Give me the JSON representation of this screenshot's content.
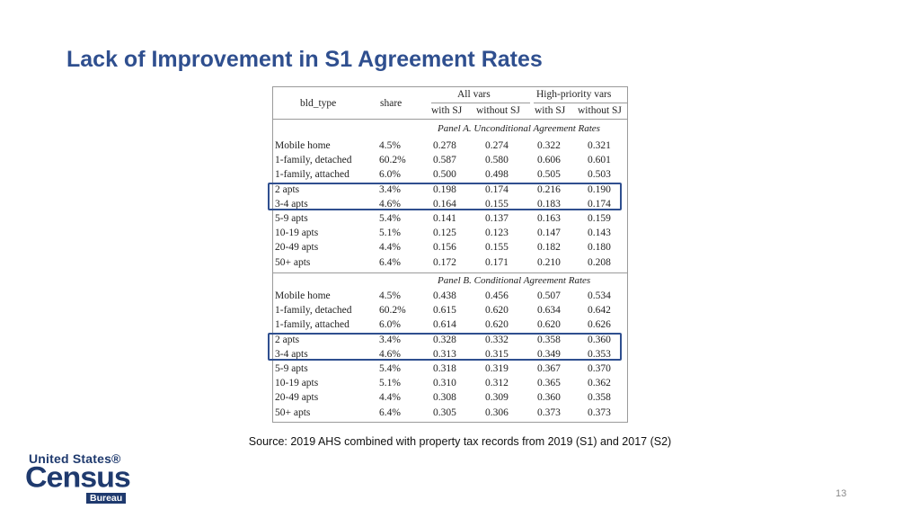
{
  "slide": {
    "title": "Lack of Improvement in S1 Agreement Rates",
    "source": "Source: 2019 AHS combined with property tax records from 2019 (S1) and 2017 (S2)",
    "page_number": "13",
    "logo": {
      "line1": "United States®",
      "line2": "Census",
      "line3": "Bureau"
    }
  },
  "table": {
    "col_bld_type": "bld_type",
    "col_share": "share",
    "group_all": "All vars",
    "group_high": "High-priority vars",
    "sub_with1": "with SJ",
    "sub_without1": "without SJ",
    "sub_with2": "with SJ",
    "sub_without2": "without SJ",
    "panelA_title": "Panel A. Unconditional Agreement Rates",
    "panelB_title": "Panel B. Conditional Agreement Rates",
    "panelA": [
      [
        "Mobile home",
        "4.5%",
        "0.278",
        "0.274",
        "0.322",
        "0.321"
      ],
      [
        "1-family, detached",
        "60.2%",
        "0.587",
        "0.580",
        "0.606",
        "0.601"
      ],
      [
        "1-family, attached",
        "6.0%",
        "0.500",
        "0.498",
        "0.505",
        "0.503"
      ],
      [
        "2 apts",
        "3.4%",
        "0.198",
        "0.174",
        "0.216",
        "0.190"
      ],
      [
        "3-4 apts",
        "4.6%",
        "0.164",
        "0.155",
        "0.183",
        "0.174"
      ],
      [
        "5-9 apts",
        "5.4%",
        "0.141",
        "0.137",
        "0.163",
        "0.159"
      ],
      [
        "10-19 apts",
        "5.1%",
        "0.125",
        "0.123",
        "0.147",
        "0.143"
      ],
      [
        "20-49 apts",
        "4.4%",
        "0.156",
        "0.155",
        "0.182",
        "0.180"
      ],
      [
        "50+ apts",
        "6.4%",
        "0.172",
        "0.171",
        "0.210",
        "0.208"
      ]
    ],
    "panelB": [
      [
        "Mobile home",
        "4.5%",
        "0.438",
        "0.456",
        "0.507",
        "0.534"
      ],
      [
        "1-family, detached",
        "60.2%",
        "0.615",
        "0.620",
        "0.634",
        "0.642"
      ],
      [
        "1-family, attached",
        "6.0%",
        "0.614",
        "0.620",
        "0.620",
        "0.626"
      ],
      [
        "2 apts",
        "3.4%",
        "0.328",
        "0.332",
        "0.358",
        "0.360"
      ],
      [
        "3-4 apts",
        "4.6%",
        "0.313",
        "0.315",
        "0.349",
        "0.353"
      ],
      [
        "5-9 apts",
        "5.4%",
        "0.318",
        "0.319",
        "0.367",
        "0.370"
      ],
      [
        "10-19 apts",
        "5.1%",
        "0.310",
        "0.312",
        "0.365",
        "0.362"
      ],
      [
        "20-49 apts",
        "4.4%",
        "0.308",
        "0.309",
        "0.360",
        "0.358"
      ],
      [
        "50+ apts",
        "6.4%",
        "0.305",
        "0.306",
        "0.373",
        "0.373"
      ]
    ]
  }
}
